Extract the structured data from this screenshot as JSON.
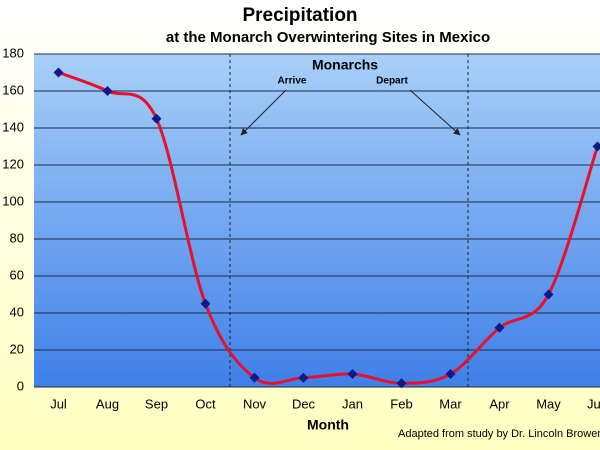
{
  "chart_data": {
    "type": "line",
    "title": "Precipitation",
    "subtitle": "at the Monarch Overwintering Sites in Mexico",
    "x_label": "Month",
    "annotations": {
      "header": "Monarchs",
      "arrive": "Arrive",
      "depart": "Depart"
    },
    "source": "Adapted from study by Dr. Lincoln Brower",
    "categories": [
      "Jul",
      "Aug",
      "Sep",
      "Oct",
      "Nov",
      "Dec",
      "Jan",
      "Feb",
      "Mar",
      "Apr",
      "May",
      "Jun"
    ],
    "series": [
      {
        "name": "Precipitation",
        "color": "#e8102a",
        "marker_color": "#0a1a8a",
        "values": [
          170,
          160,
          145,
          45,
          5,
          5,
          7,
          2,
          7,
          32,
          50,
          130
        ]
      }
    ],
    "ylim": [
      0,
      180
    ],
    "yticks": [
      0,
      20,
      40,
      60,
      80,
      100,
      120,
      140,
      160,
      180
    ],
    "grid": true
  }
}
